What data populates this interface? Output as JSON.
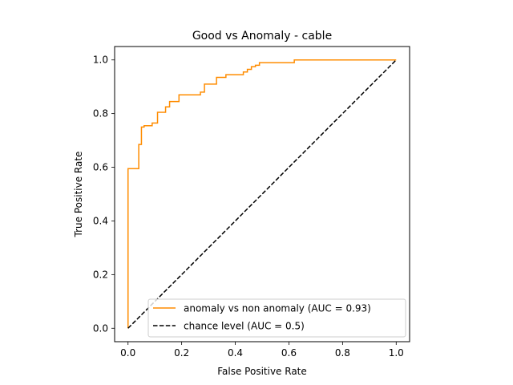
{
  "chart_data": {
    "type": "line",
    "title": "Good vs Anomaly - cable",
    "xlabel": "False Positive Rate",
    "ylabel": "True Positive Rate",
    "xlim": [
      -0.05,
      1.05
    ],
    "ylim": [
      -0.05,
      1.05
    ],
    "xticks": [
      "0.0",
      "0.2",
      "0.4",
      "0.6",
      "0.8",
      "1.0"
    ],
    "yticks": [
      "0.0",
      "0.2",
      "0.4",
      "0.6",
      "0.8",
      "1.0"
    ],
    "grid": false,
    "legend_position": "lower-right",
    "series": [
      {
        "name": "anomaly vs non anomaly (AUC = 0.93)",
        "color": "#ff8c00",
        "style": "solid",
        "x": [
          0.0,
          0.0,
          0.0,
          0.04,
          0.04,
          0.05,
          0.05,
          0.06,
          0.06,
          0.09,
          0.09,
          0.11,
          0.11,
          0.14,
          0.14,
          0.155,
          0.155,
          0.19,
          0.19,
          0.27,
          0.27,
          0.285,
          0.285,
          0.33,
          0.33,
          0.365,
          0.365,
          0.43,
          0.43,
          0.445,
          0.445,
          0.46,
          0.46,
          0.475,
          0.475,
          0.49,
          0.49,
          0.62,
          0.62,
          1.0
        ],
        "y": [
          0.0,
          0.595,
          0.595,
          0.595,
          0.685,
          0.685,
          0.75,
          0.75,
          0.755,
          0.755,
          0.765,
          0.765,
          0.805,
          0.805,
          0.825,
          0.825,
          0.845,
          0.845,
          0.87,
          0.87,
          0.88,
          0.88,
          0.91,
          0.91,
          0.935,
          0.935,
          0.945,
          0.945,
          0.955,
          0.955,
          0.965,
          0.965,
          0.975,
          0.975,
          0.98,
          0.98,
          0.99,
          0.99,
          1.0,
          1.0
        ]
      },
      {
        "name": "chance level (AUC = 0.5)",
        "color": "#000000",
        "style": "dashed",
        "x": [
          0.0,
          1.0
        ],
        "y": [
          0.0,
          1.0
        ]
      }
    ]
  }
}
